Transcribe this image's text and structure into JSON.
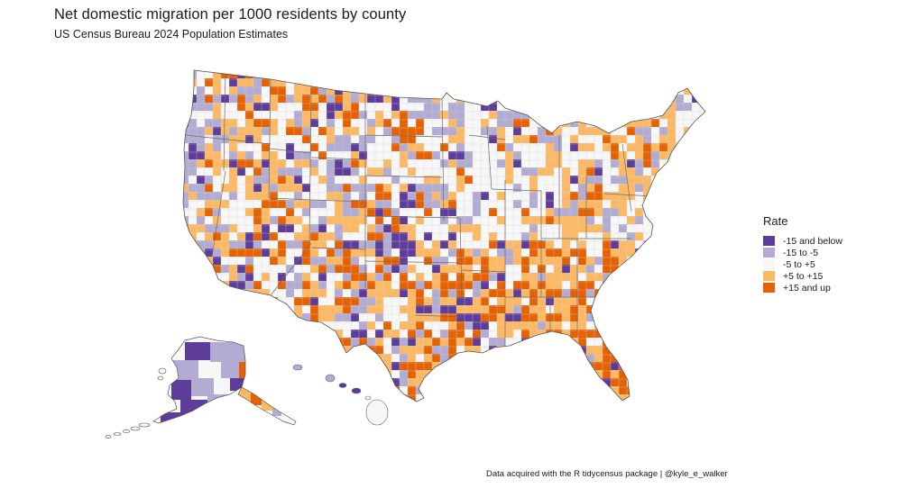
{
  "map": {
    "title": "Net domestic migration per 1000 residents by county",
    "subtitle": "US Census Bureau 2024 Population Estimates",
    "caption": "Data acquired with the R tidycensus package | @kyle_e_walker",
    "legend": {
      "title": "Rate",
      "items": [
        {
          "label": "-15 and below",
          "color": "#5e3c99"
        },
        {
          "label": "-15 to -5",
          "color": "#b2abd2"
        },
        {
          "label": "-5 to +5",
          "color": "#f7f7f7"
        },
        {
          "label": "+5 to +15",
          "color": "#fdb863"
        },
        {
          "label": "+15 and up",
          "color": "#e66101"
        }
      ]
    },
    "border_color": "#6b6b6b"
  }
}
